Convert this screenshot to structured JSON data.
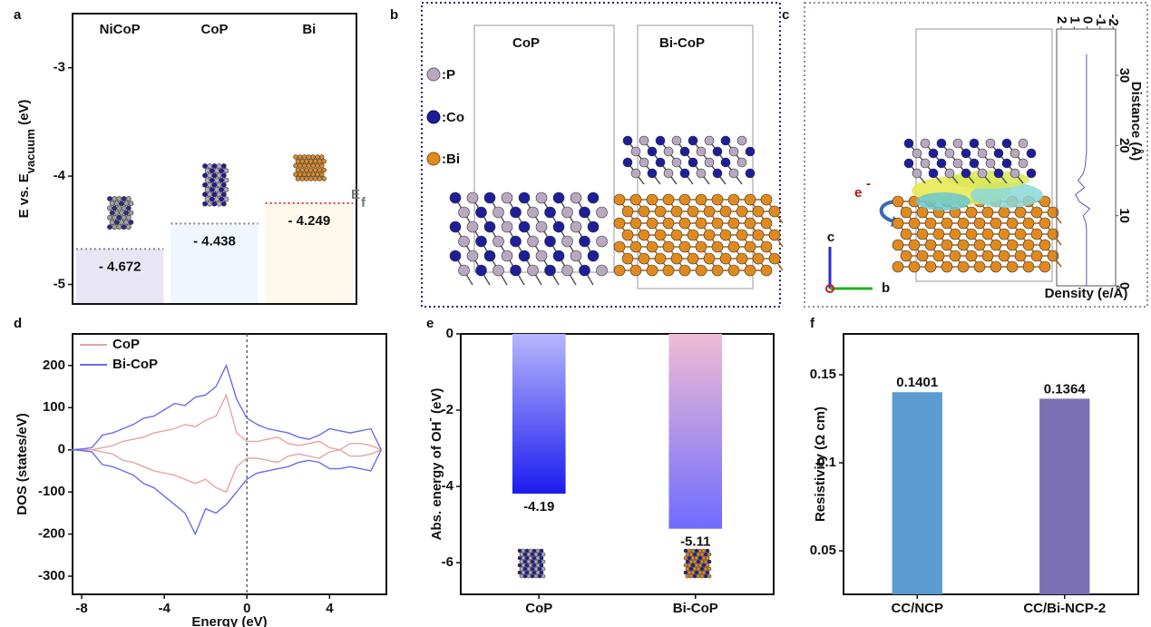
{
  "chart_data": [
    {
      "type": "level",
      "categories": [
        "NiCoP",
        "CoP",
        "Bi"
      ],
      "values": [
        -4.672,
        -4.438,
        -4.249
      ],
      "value_labels": [
        "- 4.672",
        "- 4.438",
        "- 4.249"
      ],
      "colors": [
        "#e8e6f5",
        "#f1f5fd",
        "#fdf7ec"
      ],
      "line_colors": [
        "#888888",
        "#888888",
        "#d83a3a"
      ],
      "ylim": [
        -5.18,
        -2.5
      ],
      "yticks": [
        -5,
        -4,
        -3
      ],
      "ylabel": "E vs. E",
      "ylabel_sub": "vacuum",
      "ylabel_tail": " (eV)",
      "annotation": "E",
      "annotation_sub": "f"
    },
    {
      "type": "line",
      "orientation": "vertical",
      "x": [
        0,
        1,
        2,
        3,
        4,
        5,
        6,
        7,
        8,
        9,
        10,
        11,
        12,
        13,
        14,
        15,
        16,
        17,
        18,
        19,
        20,
        21,
        22,
        23,
        24,
        25,
        26,
        27,
        28,
        29,
        30,
        31,
        32,
        33
      ],
      "series": [
        {
          "color": "#5a5ab8",
          "values": [
            0.05,
            0.05,
            0.05,
            0.05,
            0.05,
            0.05,
            0.05,
            0.05,
            0.05,
            0.1,
            0.3,
            -0.2,
            0.6,
            0.9,
            0.2,
            0.7,
            0.3,
            0.15,
            0.1,
            0.05,
            0.05,
            0.05,
            0.05,
            0.05,
            0.05,
            0.05,
            0.05,
            0.05,
            0.05,
            0.05,
            0.05,
            0.05,
            0.05,
            0.05
          ]
        }
      ],
      "xlim": [
        0,
        36.6
      ],
      "xticks": [
        0,
        10,
        20,
        30
      ],
      "ylim": [
        2.35,
        -2.2
      ],
      "yticks": [
        2,
        1,
        0,
        -1,
        -2
      ],
      "xlabel": "Distance (Å)",
      "ylabel": "Density (e/Å)"
    },
    {
      "type": "line",
      "x": [
        -8.5,
        -8,
        -7.5,
        -7,
        -6.5,
        -6,
        -5.5,
        -5,
        -4.5,
        -4,
        -3.5,
        -3,
        -2.5,
        -2,
        -1.5,
        -1,
        -0.5,
        0,
        0.5,
        1,
        1.5,
        2,
        2.5,
        3,
        3.5,
        4,
        4.5,
        5,
        5.5,
        6,
        6.5
      ],
      "series": [
        {
          "name": "CoP",
          "color": "#e8a3a3",
          "values": [
            0,
            0,
            0,
            5,
            10,
            20,
            25,
            30,
            40,
            45,
            50,
            60,
            55,
            70,
            80,
            130,
            40,
            20,
            20,
            25,
            30,
            15,
            10,
            15,
            20,
            5,
            0,
            15,
            15,
            10,
            0
          ],
          "values_down": [
            0,
            0,
            0,
            -5,
            -10,
            -25,
            -30,
            -40,
            -50,
            -55,
            -60,
            -70,
            -80,
            -70,
            -90,
            -100,
            -40,
            -20,
            -20,
            -25,
            -30,
            -15,
            -10,
            -15,
            -20,
            -5,
            0,
            -15,
            -15,
            -10,
            0
          ]
        },
        {
          "name": "Bi-CoP",
          "color": "#6b6bf0",
          "values": [
            0,
            2,
            5,
            35,
            40,
            50,
            60,
            75,
            80,
            95,
            110,
            105,
            125,
            130,
            150,
            200,
            120,
            75,
            60,
            50,
            45,
            40,
            30,
            25,
            35,
            50,
            45,
            40,
            45,
            50,
            0
          ],
          "values_down": [
            0,
            -2,
            -5,
            -35,
            -40,
            -50,
            -60,
            -80,
            -90,
            -110,
            -130,
            -150,
            -200,
            -140,
            -150,
            -130,
            -100,
            -70,
            -55,
            -50,
            -45,
            -40,
            -30,
            -25,
            -30,
            -45,
            -45,
            -40,
            -45,
            -50,
            0
          ]
        }
      ],
      "xlim": [
        -8.44,
        6.75
      ],
      "xticks": [
        -8,
        -4,
        0,
        4
      ],
      "ylim": [
        -343,
        275
      ],
      "yticks": [
        -300,
        -200,
        -100,
        0,
        100,
        200
      ],
      "vline": 0,
      "xlabel": "Energy (eV)",
      "ylabel": "DOS (states/eV)",
      "legend": "upper left"
    },
    {
      "type": "bar",
      "categories": [
        "CoP",
        "Bi-CoP"
      ],
      "values": [
        -4.19,
        -5.11
      ],
      "colors": [
        [
          "#b6b6fb",
          "#1c1cf0"
        ],
        [
          "#f0bcd4",
          "#6f6cff"
        ]
      ],
      "ylim": [
        -6.83,
        0
      ],
      "yticks": [
        -6,
        -4,
        -2,
        0
      ],
      "ylabel": "Abs. energy of OH",
      "ylabel_sup": "-",
      "ylabel_tail": " (eV)"
    },
    {
      "type": "bar",
      "categories": [
        "CC/NCP",
        "CC/Bi-NCP-2"
      ],
      "values": [
        0.1401,
        0.1364
      ],
      "colors": [
        "#5b9bd1",
        "#7b6fb3"
      ],
      "ylim": [
        0.0253,
        0.1732
      ],
      "yticks": [
        0.05,
        0.1,
        0.15
      ],
      "ylabel": "Resistivity (Ω cm)"
    }
  ],
  "panel_labels": [
    "a",
    "b",
    "c",
    "d",
    "e",
    "f"
  ],
  "structure_b": {
    "labels": [
      "CoP",
      "Bi-CoP"
    ],
    "legend": [
      ":P",
      ":Co",
      ":Bi"
    ]
  },
  "structure_c": {
    "charge": "e",
    "charge_sup": "-",
    "axes": [
      "c",
      "b"
    ]
  }
}
